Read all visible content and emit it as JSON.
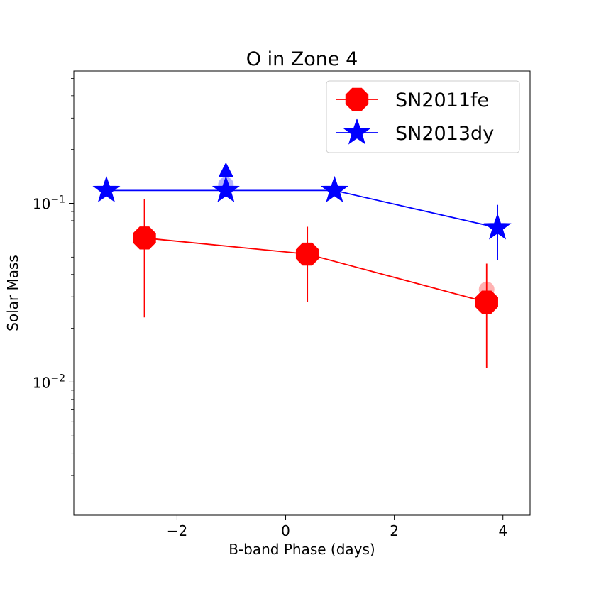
{
  "chart_data": {
    "type": "scatter",
    "title": "O in Zone 4",
    "xlabel": "B-band Phase (days)",
    "ylabel": "Solar Mass",
    "xlim": [
      -3.9,
      4.5
    ],
    "ylim": [
      0.0018,
      0.55
    ],
    "yscale": "log",
    "xticks": [
      -2,
      0,
      2,
      4
    ],
    "xtick_labels": [
      "−2",
      "0",
      "2",
      "4"
    ],
    "yticks": [
      {
        "value": 0.1,
        "base": "10",
        "exp": "−1"
      },
      {
        "value": 0.01,
        "base": "10",
        "exp": "−2"
      }
    ],
    "legend_position": "top-right",
    "series": [
      {
        "name": "SN2011fe",
        "color": "#ff0000",
        "marker": "octagon",
        "points": [
          {
            "x": -2.6,
            "y": 0.064,
            "ylo": 0.023,
            "yhi": 0.106
          },
          {
            "x": 0.4,
            "y": 0.052,
            "ylo": 0.028,
            "yhi": 0.074
          },
          {
            "x": 3.7,
            "y": 0.028,
            "ylo": 0.012,
            "yhi": 0.046
          }
        ],
        "ghost_points": [
          {
            "x": 3.7,
            "y": 0.033
          }
        ]
      },
      {
        "name": "SN2013dy",
        "color": "#0000ff",
        "marker": "star",
        "points": [
          {
            "x": -3.3,
            "y": 0.118
          },
          {
            "x": -1.1,
            "y": 0.118
          },
          {
            "x": 0.9,
            "y": 0.118
          },
          {
            "x": 3.9,
            "y": 0.073,
            "ylo": 0.048,
            "yhi": 0.098
          }
        ],
        "ghost_points": [
          {
            "x": -1.1,
            "y": 0.127
          }
        ],
        "lower_limits": [
          {
            "x": -1.1,
            "y": 0.152
          }
        ]
      }
    ]
  }
}
